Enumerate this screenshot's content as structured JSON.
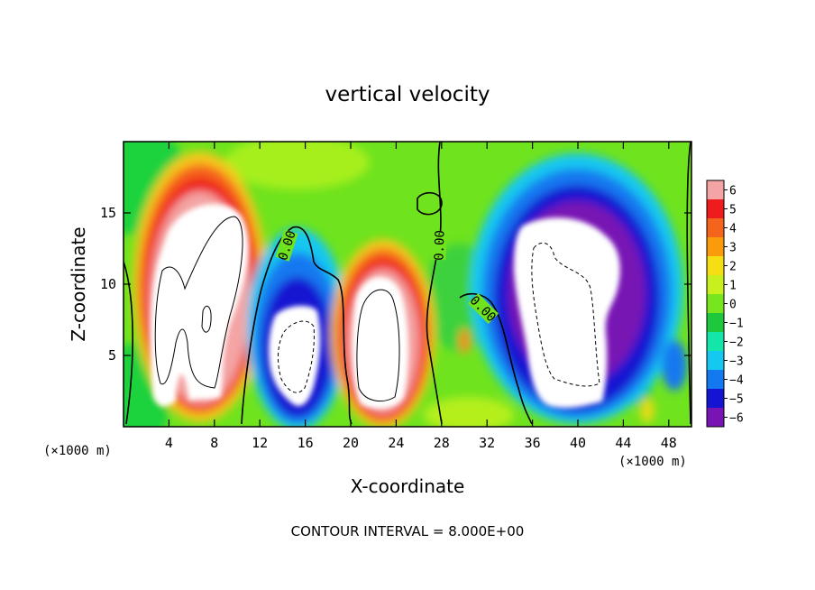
{
  "chart_data": {
    "type": "heatmap",
    "title": "vertical velocity",
    "xlabel": "X-coordinate",
    "ylabel": "Z-coordinate",
    "x_unit_label": "(×1000 m)",
    "z_unit_label": "(×1000 m)",
    "footer": "CONTOUR INTERVAL = 8.000E+00",
    "xlim": [
      0,
      50
    ],
    "ylim": [
      0,
      20
    ],
    "x_ticks": [
      "4",
      "8",
      "12",
      "16",
      "20",
      "24",
      "28",
      "32",
      "36",
      "40",
      "44",
      "48"
    ],
    "y_ticks": [
      "5",
      "10",
      "15"
    ],
    "colorbar_ticks": [
      "6",
      "5",
      "4",
      "3",
      "2",
      "1",
      "0",
      "−1",
      "−2",
      "−3",
      "−4",
      "−5",
      "−6"
    ],
    "colorbar_range": [
      -6,
      6
    ],
    "colorbar_colors": [
      "#f4a4a4",
      "#ee1c1c",
      "#f5641c",
      "#f99b0a",
      "#f5df14",
      "#c8f01e",
      "#78e61e",
      "#1ec83c",
      "#14e6aa",
      "#14c8f0",
      "#1478f0",
      "#1414d2",
      "#7814b4"
    ],
    "contour_labels": [
      {
        "text": "0.00",
        "x": 14.5,
        "z": 12.5
      },
      {
        "text": "0.00",
        "x": 28.0,
        "z": 12.5
      },
      {
        "text": "0.00",
        "x": 32.0,
        "z": 8.5
      }
    ],
    "features": [
      {
        "kind": "updraft",
        "center_x": 8.0,
        "center_z": 9.5,
        "peak": "> 6"
      },
      {
        "kind": "downdraft",
        "center_x": 15.5,
        "center_z": 5.0,
        "peak": "< -6"
      },
      {
        "kind": "updraft",
        "center_x": 23.0,
        "center_z": 6.5,
        "peak": "> 6"
      },
      {
        "kind": "downdraft",
        "center_x": 40.0,
        "center_z": 9.0,
        "peak": "< -6"
      }
    ]
  }
}
